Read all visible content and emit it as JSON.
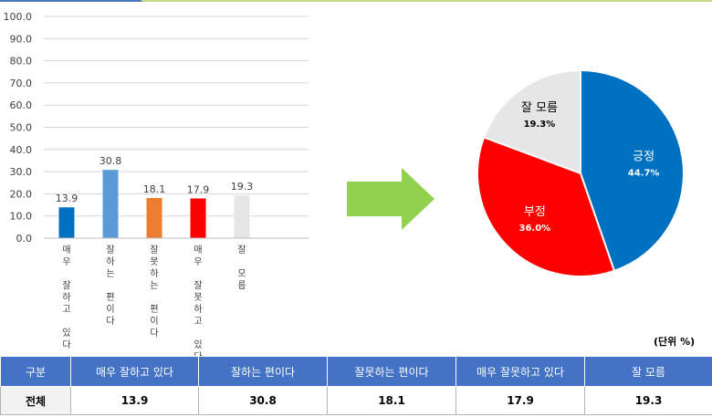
{
  "colors": {
    "bar_colors": [
      "#0070c0",
      "#5b9bd5",
      "#ed7d31",
      "#ff0000",
      "#e7e6e6"
    ],
    "pie_colors": [
      "#0070c0",
      "#ff0000",
      "#e7e6e6"
    ],
    "arrow": "#92d050",
    "table_header": "#4472c4"
  },
  "chart_data": [
    {
      "type": "bar",
      "categories": [
        "매우 잘하고 있다",
        "잘하는 편이다",
        "잘못하는 편이다",
        "매우 잘못하고 있다",
        "잘 모름"
      ],
      "values": [
        13.9,
        30.8,
        18.1,
        17.9,
        19.3
      ],
      "value_labels": [
        "13.9",
        "30.8",
        "18.1",
        "17.9",
        "19.3"
      ],
      "yticks": [
        "0.0",
        "10.0",
        "20.0",
        "30.0",
        "40.0",
        "50.0",
        "60.0",
        "70.0",
        "80.0",
        "90.0",
        "100.0"
      ],
      "ylim": [
        0,
        100
      ],
      "grid": true,
      "title": "",
      "xlabel": "",
      "ylabel": ""
    },
    {
      "type": "pie",
      "labels": [
        "긍정",
        "부정",
        "잘 모름"
      ],
      "values": [
        44.7,
        36.0,
        19.3
      ],
      "value_labels": [
        "44.7%",
        "36.0%",
        "19.3%"
      ],
      "title": ""
    }
  ],
  "unit_label": "(단위 %)",
  "table": {
    "headers": [
      "구분",
      "매우 잘하고 있다",
      "잘하는 편이다",
      "잘못하는 편이다",
      "매우 잘못하고 있다",
      "잘 모름"
    ],
    "row_label": "전체",
    "values": [
      "13.9",
      "30.8",
      "18.1",
      "17.9",
      "19.3"
    ]
  }
}
